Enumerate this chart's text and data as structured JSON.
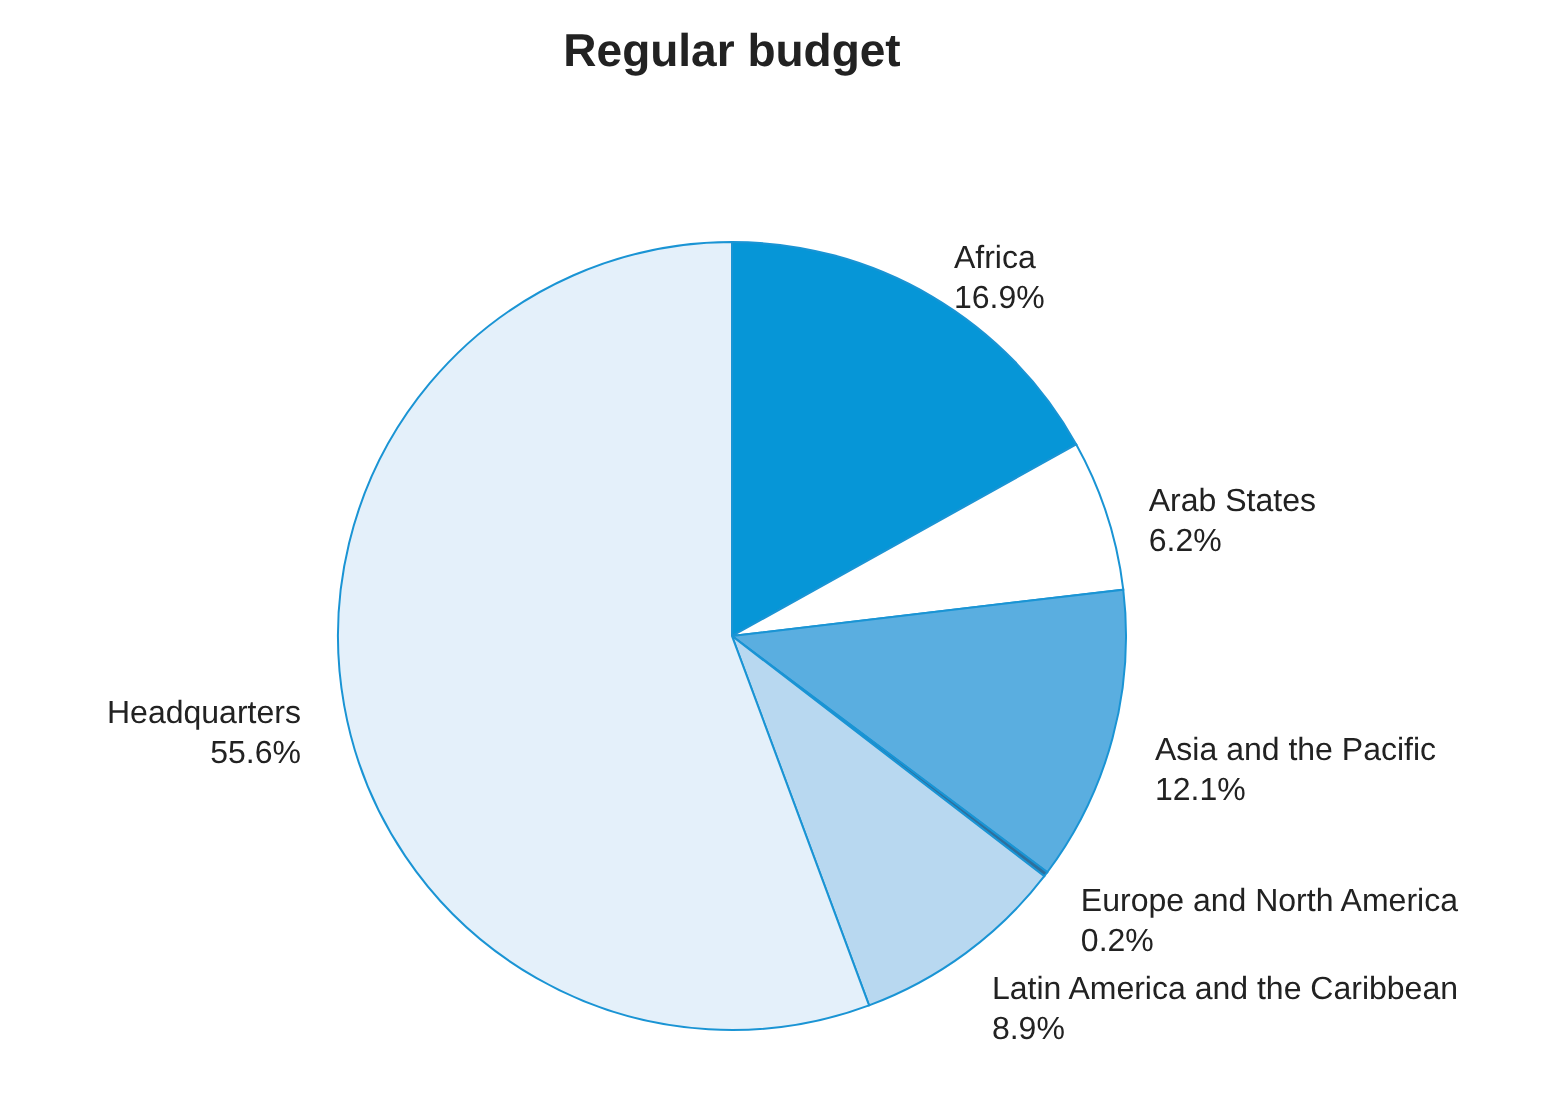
{
  "chart_data": {
    "type": "pie",
    "title": "Regular budget",
    "categories": [
      "Africa",
      "Arab States",
      "Asia and the Pacific",
      "Europe and North America",
      "Latin America and the Caribbean",
      "Headquarters"
    ],
    "values": [
      16.9,
      6.2,
      12.1,
      0.2,
      8.9,
      55.6
    ],
    "value_labels": [
      "16.9%",
      "6.2%",
      "12.1%",
      "0.2%",
      "8.9%",
      "55.6%"
    ],
    "colors": [
      "#0696d7",
      "#ffffff",
      "#5aaee0",
      "#2f6f9c",
      "#b8d8f0",
      "#e4f0fa"
    ]
  }
}
